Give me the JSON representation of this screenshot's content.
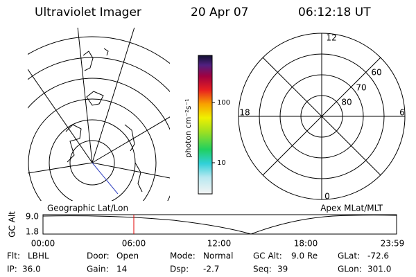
{
  "header": {
    "title": "Ultraviolet Imager",
    "date": "20 Apr 07",
    "time": "06:12:18 UT"
  },
  "map": {
    "label": "Geographic Lat/Lon"
  },
  "colorbar": {
    "label": "photon cm⁻²s⁻¹",
    "ticks": [
      "100",
      "10"
    ]
  },
  "polar": {
    "label": "Apex MLat/MLT",
    "mlt": [
      "12",
      "6",
      "18",
      "0"
    ],
    "mlat": [
      "80",
      "70",
      "60"
    ]
  },
  "altitude": {
    "axis_label": "GC Alt",
    "yticks": [
      "9.0",
      "1.8"
    ],
    "xticks": [
      "00:00",
      "06:00",
      "12:00",
      "18:00",
      "23:59"
    ]
  },
  "status": [
    [
      {
        "label": "Flt:",
        "value": "LBHL"
      },
      {
        "label": "Door:",
        "value": "Open"
      },
      {
        "label": "Mode:",
        "value": "Normal"
      },
      {
        "label": "GC Alt:",
        "value": "9.0 Re"
      },
      {
        "label": "GLat:",
        "value": "-72.6"
      }
    ],
    [
      {
        "label": "IP:",
        "value": "36.0"
      },
      {
        "label": "Gain:",
        "value": "14"
      },
      {
        "label": "Dsp:",
        "value": "-2.7"
      },
      {
        "label": "Seq:",
        "value": "39"
      },
      {
        "label": "GLon:",
        "value": "301.0"
      }
    ]
  ]
}
